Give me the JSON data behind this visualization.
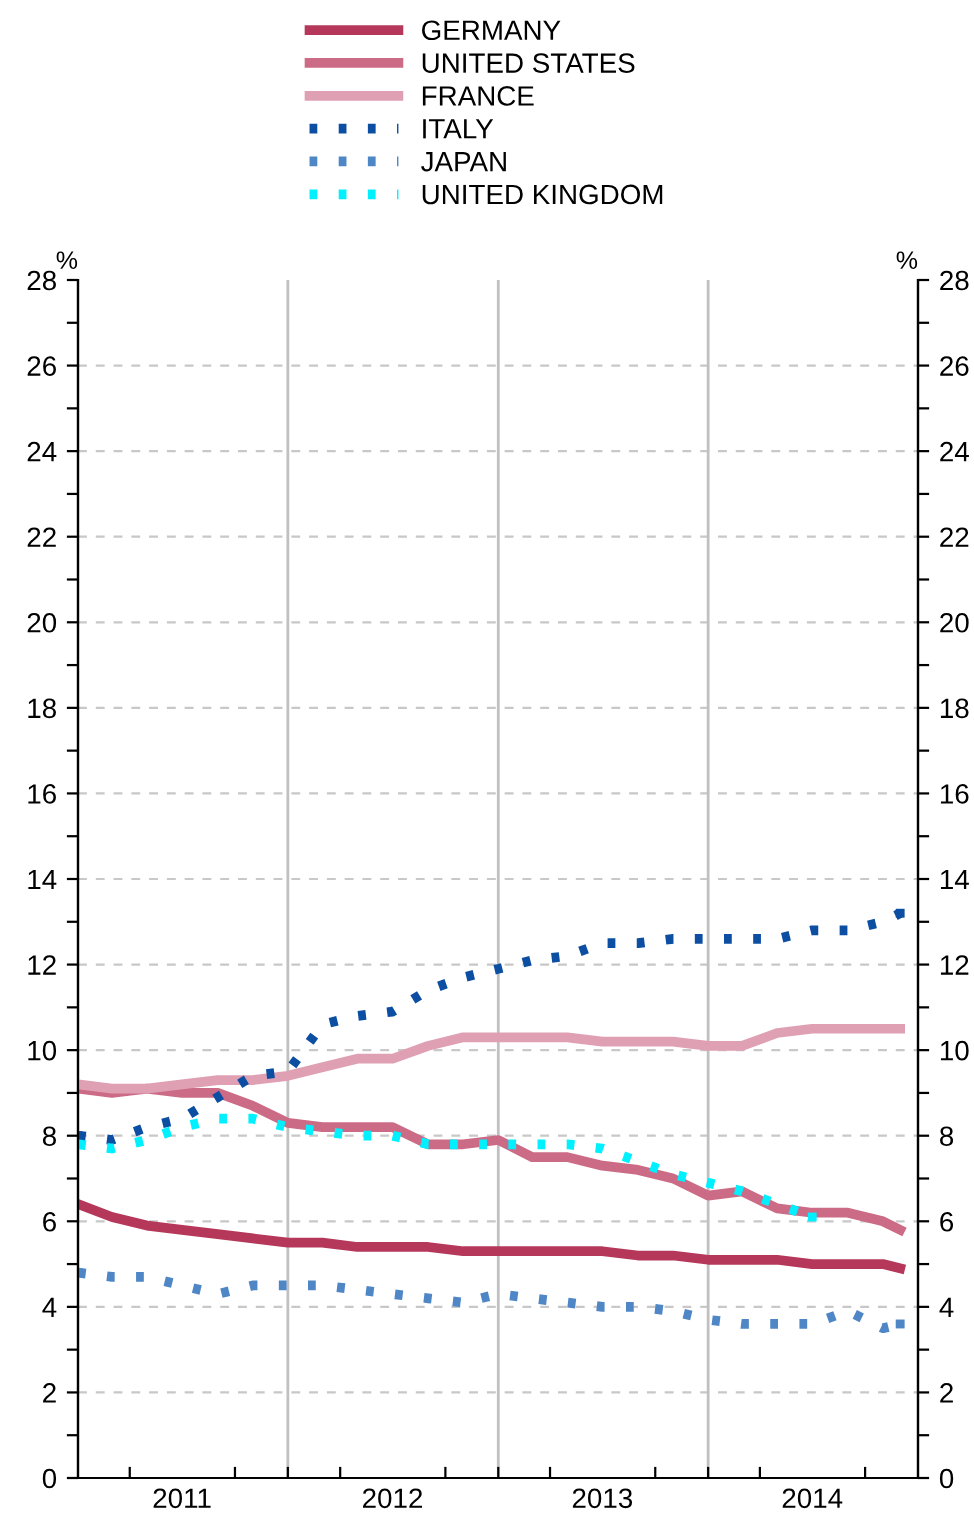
{
  "chart_data": {
    "type": "line",
    "ylabel": "%",
    "y2label": "%",
    "x": [
      "2011-01",
      "2011-03",
      "2011-05",
      "2011-07",
      "2011-09",
      "2011-11",
      "2012-01",
      "2012-03",
      "2012-05",
      "2012-07",
      "2012-09",
      "2012-11",
      "2013-01",
      "2013-03",
      "2013-05",
      "2013-07",
      "2013-09",
      "2013-11",
      "2014-01",
      "2014-03",
      "2014-05",
      "2014-07",
      "2014-09",
      "2014-11",
      "2014-12"
    ],
    "series": [
      {
        "name": "GERMANY",
        "color": "#b5385a",
        "line_style": "solid",
        "values": [
          6.4,
          6.1,
          5.9,
          5.8,
          5.7,
          5.6,
          5.5,
          5.5,
          5.4,
          5.4,
          5.4,
          5.3,
          5.3,
          5.3,
          5.3,
          5.3,
          5.2,
          5.2,
          5.1,
          5.1,
          5.1,
          5.0,
          5.0,
          5.0,
          4.9
        ]
      },
      {
        "name": "UNITED STATES",
        "color": "#cc6b85",
        "line_style": "solid",
        "values": [
          9.1,
          9.0,
          9.1,
          9.0,
          9.0,
          8.7,
          8.3,
          8.2,
          8.2,
          8.2,
          7.8,
          7.8,
          7.9,
          7.5,
          7.5,
          7.3,
          7.2,
          7.0,
          6.6,
          6.7,
          6.3,
          6.2,
          6.2,
          6.0,
          5.8
        ]
      },
      {
        "name": "FRANCE",
        "color": "#e0a0b4",
        "line_style": "solid",
        "values": [
          9.2,
          9.1,
          9.1,
          9.2,
          9.3,
          9.3,
          9.4,
          9.6,
          9.8,
          9.8,
          10.1,
          10.3,
          10.3,
          10.3,
          10.3,
          10.2,
          10.2,
          10.2,
          10.1,
          10.1,
          10.4,
          10.5,
          10.5,
          10.5,
          10.5
        ]
      },
      {
        "name": "ITALY",
        "color": "#0c4ea2",
        "line_style": "dotted",
        "values": [
          8.0,
          7.9,
          8.2,
          8.4,
          8.9,
          9.4,
          9.5,
          10.6,
          10.8,
          10.9,
          11.4,
          11.7,
          11.9,
          12.1,
          12.2,
          12.5,
          12.5,
          12.6,
          12.6,
          12.6,
          12.6,
          12.8,
          12.8,
          13.0,
          13.2
        ]
      },
      {
        "name": "JAPAN",
        "color": "#4f86c6",
        "line_style": "dotted",
        "values": [
          4.8,
          4.7,
          4.7,
          4.5,
          4.3,
          4.5,
          4.5,
          4.5,
          4.4,
          4.3,
          4.2,
          4.1,
          4.3,
          4.2,
          4.1,
          4.0,
          4.0,
          3.9,
          3.7,
          3.6,
          3.6,
          3.6,
          3.9,
          3.5,
          3.6
        ]
      },
      {
        "name": "UNITED KINGDOM",
        "color": "#00f0ff",
        "line_style": "dotted",
        "values": [
          7.8,
          7.7,
          7.9,
          8.2,
          8.4,
          8.4,
          8.2,
          8.1,
          8.0,
          8.0,
          7.8,
          7.8,
          7.8,
          7.8,
          7.8,
          7.7,
          7.4,
          7.1,
          6.9,
          6.7,
          6.4,
          6.1,
          null,
          null,
          null
        ]
      }
    ],
    "xlim": [
      "2011-01",
      "2015-01"
    ],
    "xticks": [
      {
        "value": "2011-04",
        "label": null
      },
      {
        "value": "2011-07",
        "label": "2011"
      },
      {
        "value": "2011-10",
        "label": null
      },
      {
        "value": "2012-01",
        "label": null
      },
      {
        "value": "2012-04",
        "label": null
      },
      {
        "value": "2012-07",
        "label": "2012"
      },
      {
        "value": "2012-10",
        "label": null
      },
      {
        "value": "2013-01",
        "label": null
      },
      {
        "value": "2013-04",
        "label": null
      },
      {
        "value": "2013-07",
        "label": "2013"
      },
      {
        "value": "2013-10",
        "label": null
      },
      {
        "value": "2014-01",
        "label": null
      },
      {
        "value": "2014-04",
        "label": null
      },
      {
        "value": "2014-07",
        "label": "2014"
      },
      {
        "value": "2014-10",
        "label": null
      }
    ],
    "ylim": [
      0,
      28
    ],
    "yticks": [
      0,
      {
        "value": 1,
        "label": null
      },
      2,
      {
        "value": 3,
        "label": null
      },
      4,
      {
        "value": 5,
        "label": null
      },
      6,
      {
        "value": 7,
        "label": null
      },
      8,
      {
        "value": 9,
        "label": null
      },
      10,
      {
        "value": 11,
        "label": null
      },
      12,
      {
        "value": 13,
        "label": null
      },
      14,
      {
        "value": 15,
        "label": null
      },
      16,
      {
        "value": 17,
        "label": null
      },
      18,
      {
        "value": 19,
        "label": null
      },
      20,
      {
        "value": 21,
        "label": null
      },
      22,
      {
        "value": 23,
        "label": null
      },
      24,
      {
        "value": 25,
        "label": null
      },
      26,
      {
        "value": 27,
        "label": null
      },
      28
    ],
    "y2lim": [
      0,
      28
    ],
    "y2ticks": [
      0,
      {
        "value": 1,
        "label": null
      },
      2,
      {
        "value": 3,
        "label": null
      },
      4,
      {
        "value": 5,
        "label": null
      },
      6,
      {
        "value": 7,
        "label": null
      },
      8,
      {
        "value": 9,
        "label": null
      },
      10,
      {
        "value": 11,
        "label": null
      },
      12,
      {
        "value": 13,
        "label": null
      },
      14,
      {
        "value": 15,
        "label": null
      },
      16,
      {
        "value": 17,
        "label": null
      },
      18,
      {
        "value": 19,
        "label": null
      },
      20,
      {
        "value": 21,
        "label": null
      },
      22,
      {
        "value": 23,
        "label": null
      },
      24,
      {
        "value": 25,
        "label": null
      },
      26,
      {
        "value": 27,
        "label": null
      },
      28
    ],
    "ref_lines": [
      {
        "axis": "x",
        "value": "2012-01",
        "color": "#c0c0c0"
      },
      {
        "axis": "x",
        "value": "2013-01",
        "color": "#c0c0c0"
      },
      {
        "axis": "x",
        "value": "2014-01",
        "color": "#c0c0c0"
      }
    ],
    "grid": "y",
    "legend": "top"
  }
}
